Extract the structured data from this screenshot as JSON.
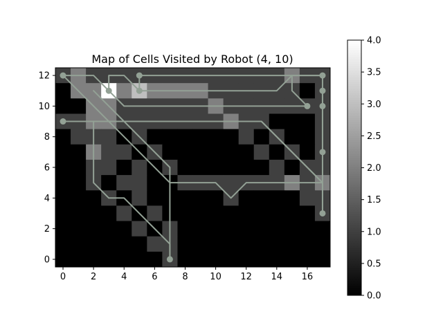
{
  "chart_data": {
    "type": "heatmap",
    "title": "Map of Cells Visited by Robot (4, 10)",
    "xlabel": "",
    "ylabel": "",
    "x_range": [
      -0.5,
      17.5
    ],
    "y_range": [
      -0.5,
      12.5
    ],
    "x_ticks": [
      0,
      2,
      4,
      6,
      8,
      10,
      12,
      14,
      16
    ],
    "y_ticks": [
      0,
      2,
      4,
      6,
      8,
      10,
      12
    ],
    "grid": false,
    "colormap": "gray",
    "colorbar": {
      "range": [
        0.0,
        4.0
      ],
      "ticks": [
        "0.0",
        "0.5",
        "1.0",
        "1.5",
        "2.0",
        "2.5",
        "3.0",
        "3.5",
        "4.0"
      ]
    },
    "rows_top_to_bottom": [
      [
        1,
        2,
        1,
        1,
        1,
        1,
        1,
        1,
        1,
        1,
        1,
        1,
        1,
        1,
        1,
        2,
        1,
        1
      ],
      [
        0,
        2,
        2,
        4,
        2,
        3,
        2,
        2,
        2,
        2,
        1,
        1,
        1,
        1,
        1,
        1,
        0,
        1
      ],
      [
        0,
        0,
        2,
        2,
        1,
        1,
        1,
        1,
        1,
        1,
        2,
        1,
        1,
        1,
        1,
        1,
        1,
        1
      ],
      [
        1,
        1,
        2,
        2,
        1,
        1,
        1,
        1,
        1,
        1,
        1,
        2,
        1,
        1,
        0,
        0,
        0,
        1
      ],
      [
        0,
        1,
        1,
        1,
        0,
        1,
        0,
        0,
        0,
        0,
        0,
        0,
        1,
        0,
        1,
        0,
        0,
        1
      ],
      [
        0,
        0,
        2,
        1,
        1,
        0,
        1,
        0,
        0,
        0,
        0,
        0,
        0,
        1,
        0,
        1,
        0,
        1
      ],
      [
        0,
        0,
        1,
        1,
        0,
        1,
        0,
        1,
        0,
        0,
        0,
        0,
        0,
        0,
        1,
        0,
        1,
        1
      ],
      [
        0,
        0,
        1,
        0,
        1,
        1,
        0,
        0,
        1,
        1,
        1,
        1,
        1,
        1,
        1,
        2,
        1,
        2
      ],
      [
        0,
        0,
        0,
        1,
        0,
        1,
        0,
        0,
        0,
        0,
        0,
        1,
        0,
        0,
        0,
        0,
        1,
        1
      ],
      [
        0,
        0,
        0,
        0,
        1,
        0,
        1,
        0,
        0,
        0,
        0,
        0,
        0,
        0,
        0,
        0,
        0,
        1
      ],
      [
        0,
        0,
        0,
        0,
        0,
        1,
        0,
        1,
        0,
        0,
        0,
        0,
        0,
        0,
        0,
        0,
        0,
        0
      ],
      [
        0,
        0,
        0,
        0,
        0,
        0,
        1,
        1,
        0,
        0,
        0,
        0,
        0,
        0,
        0,
        0,
        0,
        0
      ],
      [
        0,
        0,
        0,
        0,
        0,
        0,
        0,
        1,
        0,
        0,
        0,
        0,
        0,
        0,
        0,
        0,
        0,
        0
      ]
    ],
    "paths": [
      [
        [
          0,
          12
        ],
        [
          2,
          12
        ],
        [
          3,
          11
        ],
        [
          4,
          10
        ],
        [
          10,
          10
        ],
        [
          16,
          10
        ]
      ],
      [
        [
          0,
          12
        ],
        [
          2,
          10
        ],
        [
          3,
          9
        ],
        [
          7,
          5
        ],
        [
          10,
          5
        ],
        [
          11,
          4
        ],
        [
          12,
          5
        ],
        [
          17,
          5
        ]
      ],
      [
        [
          0,
          9
        ],
        [
          13,
          9
        ],
        [
          17,
          5
        ]
      ],
      [
        [
          0,
          9
        ],
        [
          2,
          9
        ],
        [
          2,
          7
        ]
      ],
      [
        [
          2,
          7
        ],
        [
          2,
          5
        ],
        [
          3,
          4
        ],
        [
          4,
          4
        ],
        [
          6,
          2
        ],
        [
          7,
          1
        ],
        [
          7,
          0
        ]
      ],
      [
        [
          2,
          11
        ],
        [
          4,
          9
        ],
        [
          7,
          6
        ],
        [
          7,
          1
        ],
        [
          7,
          0
        ]
      ],
      [
        [
          3,
          11
        ],
        [
          3,
          12
        ],
        [
          4,
          12
        ],
        [
          5,
          11
        ],
        [
          14,
          11
        ],
        [
          15,
          12
        ],
        [
          17,
          12
        ]
      ],
      [
        [
          5,
          12
        ],
        [
          5,
          11
        ]
      ],
      [
        [
          5,
          12
        ],
        [
          17,
          12
        ],
        [
          17,
          3
        ]
      ],
      [
        [
          15,
          12
        ],
        [
          15,
          11
        ],
        [
          16,
          10
        ]
      ],
      [
        [
          13,
          9
        ],
        [
          17,
          5
        ],
        [
          17,
          3
        ]
      ],
      [
        [
          17,
          7
        ],
        [
          17,
          11
        ]
      ]
    ],
    "markers": [
      [
        0,
        12
      ],
      [
        3,
        11
      ],
      [
        5,
        12
      ],
      [
        5,
        11
      ],
      [
        0,
        9
      ],
      [
        16,
        10
      ],
      [
        17,
        12
      ],
      [
        17,
        11
      ],
      [
        17,
        10
      ],
      [
        17,
        7
      ],
      [
        17,
        3
      ],
      [
        7,
        0
      ]
    ]
  }
}
